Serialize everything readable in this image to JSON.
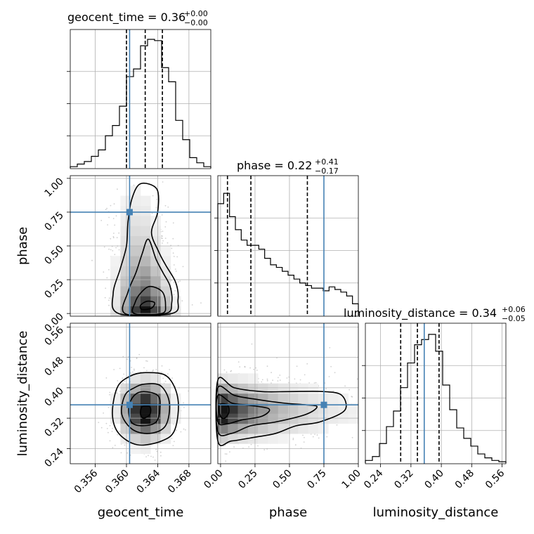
{
  "chart_data": {
    "type": "corner",
    "parameters": [
      "geocent_time",
      "phase",
      "luminosity_distance"
    ],
    "truths": {
      "geocent_time": 0.3604,
      "phase": 0.75,
      "luminosity_distance": 0.355
    },
    "panels": [
      {
        "kind": "histogram",
        "param": "geocent_time",
        "title": {
          "label": "geocent_time = 0.36",
          "plus": "+0.00",
          "minus": "−0.00"
        },
        "range": [
          0.3528,
          0.3708
        ],
        "counts": [
          0.01,
          0.03,
          0.05,
          0.09,
          0.14,
          0.25,
          0.33,
          0.48,
          0.71,
          0.77,
          0.95,
          1.0,
          0.99,
          0.78,
          0.67,
          0.37,
          0.22,
          0.08,
          0.04,
          0.01
        ],
        "quantiles": [
          0.36,
          0.3624,
          0.3646
        ],
        "xticks": [
          0.356,
          0.36,
          0.364,
          0.368
        ]
      },
      {
        "kind": "histogram",
        "param": "phase",
        "title": {
          "label": "phase = 0.22",
          "plus": "+0.41",
          "minus": "−0.17"
        },
        "range": [
          -0.02,
          1.0
        ],
        "counts": [
          0.86,
          0.94,
          0.76,
          0.66,
          0.58,
          0.54,
          0.54,
          0.51,
          0.44,
          0.39,
          0.37,
          0.34,
          0.31,
          0.28,
          0.25,
          0.23,
          0.21,
          0.21,
          0.19,
          0.22,
          0.2,
          0.18,
          0.15,
          0.09
        ],
        "quantiles": [
          0.05,
          0.22,
          0.63
        ],
        "xticks": [
          0.0,
          0.25,
          0.5,
          0.75,
          1.0
        ]
      },
      {
        "kind": "histogram",
        "param": "luminosity_distance",
        "title": {
          "label": "luminosity_distance = 0.34",
          "plus": "+0.06",
          "minus": "−0.05"
        },
        "range": [
          0.2,
          0.57
        ],
        "counts": [
          0.02,
          0.05,
          0.15,
          0.28,
          0.4,
          0.58,
          0.77,
          0.91,
          0.95,
          0.99,
          0.86,
          0.6,
          0.41,
          0.27,
          0.19,
          0.13,
          0.07,
          0.04,
          0.02,
          0.01
        ],
        "quantiles": [
          0.293,
          0.337,
          0.394
        ],
        "xticks": [
          0.24,
          0.32,
          0.4,
          0.48,
          0.56
        ]
      },
      {
        "kind": "2d",
        "x": "geocent_time",
        "y": "phase",
        "xrange": [
          0.3528,
          0.3708
        ],
        "yrange": [
          -0.02,
          1.02
        ],
        "yticks": [
          0.0,
          0.25,
          0.5,
          0.75,
          1.0
        ],
        "contours": [
          [
            [
              0.3618,
              0.96
            ],
            [
              0.3639,
              0.92
            ],
            [
              0.364,
              0.75
            ],
            [
              0.3632,
              0.6
            ],
            [
              0.3641,
              0.46
            ],
            [
              0.365,
              0.36
            ],
            [
              0.3663,
              0.23
            ],
            [
              0.3666,
              0.1
            ],
            [
              0.3658,
              0.0
            ],
            [
              0.359,
              0.0
            ],
            [
              0.3583,
              0.15
            ],
            [
              0.3592,
              0.33
            ],
            [
              0.36,
              0.5
            ],
            [
              0.3602,
              0.68
            ],
            [
              0.3607,
              0.85
            ]
          ],
          [
            [
              0.3628,
              0.55
            ],
            [
              0.3638,
              0.4
            ],
            [
              0.3647,
              0.3
            ],
            [
              0.3656,
              0.2
            ],
            [
              0.3658,
              0.08
            ],
            [
              0.365,
              0.0
            ],
            [
              0.3598,
              0.0
            ],
            [
              0.3602,
              0.16
            ],
            [
              0.3612,
              0.3
            ],
            [
              0.362,
              0.44
            ]
          ],
          [
            [
              0.363,
              0.2
            ],
            [
              0.3646,
              0.16
            ],
            [
              0.365,
              0.06
            ],
            [
              0.3645,
              0.0
            ],
            [
              0.361,
              0.0
            ],
            [
              0.3611,
              0.08
            ],
            [
              0.3618,
              0.15
            ]
          ],
          [
            [
              0.3618,
              0.06
            ],
            [
              0.3626,
              0.09
            ],
            [
              0.3636,
              0.08
            ],
            [
              0.3632,
              0.04
            ],
            [
              0.362,
              0.03
            ]
          ]
        ]
      },
      {
        "kind": "2d",
        "x": "geocent_time",
        "y": "luminosity_distance",
        "xrange": [
          0.3528,
          0.3708
        ],
        "yrange": [
          0.2,
          0.57
        ],
        "yticks": [
          0.24,
          0.32,
          0.4,
          0.48,
          0.56
        ],
        "contours": [
          [
            [
              0.3624,
              0.44
            ],
            [
              0.3652,
              0.43
            ],
            [
              0.3666,
              0.37
            ],
            [
              0.3662,
              0.29
            ],
            [
              0.3645,
              0.26
            ],
            [
              0.3614,
              0.25
            ],
            [
              0.359,
              0.28
            ],
            [
              0.3582,
              0.33
            ],
            [
              0.3588,
              0.4
            ],
            [
              0.3604,
              0.43
            ]
          ],
          [
            [
              0.3624,
              0.41
            ],
            [
              0.3644,
              0.405
            ],
            [
              0.3655,
              0.36
            ],
            [
              0.365,
              0.3
            ],
            [
              0.363,
              0.28
            ],
            [
              0.3608,
              0.29
            ],
            [
              0.3594,
              0.33
            ],
            [
              0.3598,
              0.38
            ],
            [
              0.361,
              0.4
            ]
          ],
          [
            [
              0.3622,
              0.39
            ],
            [
              0.364,
              0.38
            ],
            [
              0.3643,
              0.35
            ],
            [
              0.3638,
              0.31
            ],
            [
              0.362,
              0.3
            ],
            [
              0.3606,
              0.31
            ],
            [
              0.3603,
              0.35
            ],
            [
              0.361,
              0.38
            ]
          ],
          [
            [
              0.362,
              0.35
            ],
            [
              0.363,
              0.35
            ],
            [
              0.363,
              0.33
            ],
            [
              0.3622,
              0.32
            ],
            [
              0.3618,
              0.33
            ]
          ]
        ]
      },
      {
        "kind": "2d",
        "x": "phase",
        "y": "luminosity_distance",
        "xrange": [
          -0.02,
          1.0
        ],
        "yrange": [
          0.2,
          0.57
        ],
        "contours": [
          [
            [
              -0.02,
              0.42
            ],
            [
              0.1,
              0.4
            ],
            [
              0.3,
              0.39
            ],
            [
              0.5,
              0.39
            ],
            [
              0.75,
              0.39
            ],
            [
              0.88,
              0.38
            ],
            [
              0.9,
              0.34
            ],
            [
              0.72,
              0.31
            ],
            [
              0.55,
              0.3
            ],
            [
              0.4,
              0.28
            ],
            [
              0.25,
              0.27
            ],
            [
              0.08,
              0.26
            ],
            [
              -0.02,
              0.26
            ]
          ],
          [
            [
              -0.02,
              0.4
            ],
            [
              0.1,
              0.38
            ],
            [
              0.25,
              0.37
            ],
            [
              0.45,
              0.36
            ],
            [
              0.62,
              0.355
            ],
            [
              0.7,
              0.35
            ],
            [
              0.62,
              0.33
            ],
            [
              0.4,
              0.31
            ],
            [
              0.22,
              0.3
            ],
            [
              0.08,
              0.28
            ],
            [
              -0.02,
              0.285
            ]
          ],
          [
            [
              -0.02,
              0.38
            ],
            [
              0.08,
              0.36
            ],
            [
              0.18,
              0.355
            ],
            [
              0.35,
              0.345
            ],
            [
              0.3,
              0.325
            ],
            [
              0.15,
              0.315
            ],
            [
              0.05,
              0.305
            ],
            [
              -0.02,
              0.31
            ]
          ],
          [
            [
              -0.01,
              0.355
            ],
            [
              0.05,
              0.355
            ],
            [
              0.06,
              0.335
            ],
            [
              0.03,
              0.32
            ],
            [
              0.0,
              0.325
            ]
          ]
        ]
      }
    ]
  }
}
